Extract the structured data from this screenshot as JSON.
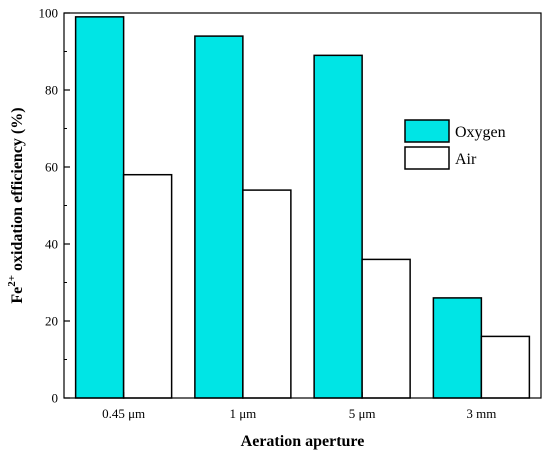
{
  "chart_data": {
    "type": "bar",
    "title": "",
    "xlabel": "Aeration aperture",
    "ylabel_base": "Fe",
    "ylabel_sup": "2+",
    "ylabel_rest": " oxidation efficiency (%)",
    "categories": [
      "0.45 μm",
      "1 μm",
      "5 μm",
      "3 mm"
    ],
    "series": [
      {
        "name": "Oxygen",
        "values": [
          99,
          94,
          89,
          26
        ],
        "color": "#00e5e5"
      },
      {
        "name": "Air",
        "values": [
          58,
          54,
          36,
          16
        ],
        "color": "#ffffff"
      }
    ],
    "ylim": [
      0,
      100
    ],
    "yticks": [
      "0",
      "20",
      "40",
      "60",
      "80",
      "100"
    ],
    "legend_position": "center-right",
    "grid": false
  }
}
